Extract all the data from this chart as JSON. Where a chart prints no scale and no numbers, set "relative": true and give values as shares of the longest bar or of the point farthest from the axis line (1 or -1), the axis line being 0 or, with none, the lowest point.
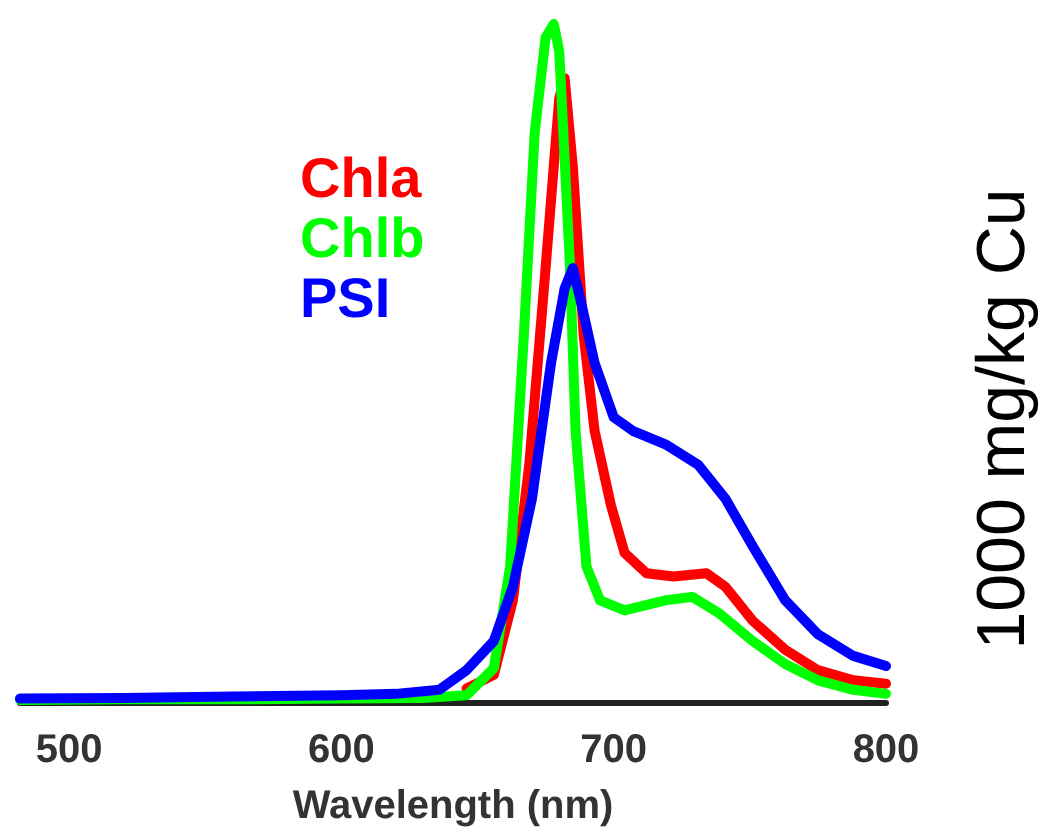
{
  "chart_data": {
    "type": "line",
    "xlabel": "Wavelength (nm)",
    "ylabel": "1000 mg/kg Cu",
    "xlim": [
      482,
      800
    ],
    "xticks": [
      500,
      600,
      700,
      800
    ],
    "relative": true,
    "legend": "top left",
    "grid": false,
    "marker": "none",
    "line_style": "solid",
    "series": [
      {
        "name": "Chla",
        "color": "#ff0000",
        "x": [
          646,
          656,
          663,
          669,
          675,
          680,
          682,
          685,
          689,
          693,
          699,
          704,
          712,
          722,
          734,
          741,
          751,
          763,
          775,
          788,
          800
        ],
        "values": [
          0.02,
          0.04,
          0.15,
          0.35,
          0.64,
          0.89,
          0.92,
          0.79,
          0.54,
          0.4,
          0.29,
          0.22,
          0.19,
          0.185,
          0.19,
          0.17,
          0.12,
          0.077,
          0.047,
          0.032,
          0.027
        ]
      },
      {
        "name": "Chlb",
        "color": "#00ff00",
        "x": [
          482,
          520,
          560,
          600,
          630,
          646,
          656,
          662,
          667,
          671,
          675,
          678,
          680,
          684,
          686,
          690,
          695,
          704,
          719,
          729,
          739,
          751,
          763,
          775,
          788,
          800
        ],
        "values": [
          0.003,
          0.004,
          0.004,
          0.005,
          0.006,
          0.01,
          0.05,
          0.2,
          0.54,
          0.84,
          0.98,
          1,
          0.96,
          0.64,
          0.4,
          0.2,
          0.15,
          0.135,
          0.15,
          0.155,
          0.13,
          0.09,
          0.056,
          0.032,
          0.018,
          0.012
        ]
      },
      {
        "name": "PSI",
        "color": "#0000ff",
        "x": [
          482,
          520,
          560,
          600,
          620,
          636,
          646,
          656,
          663,
          670,
          677,
          682,
          685,
          688,
          693,
          700,
          707,
          719,
          731,
          741,
          751,
          763,
          775,
          788,
          800
        ],
        "values": [
          0.005,
          0.006,
          0.008,
          0.01,
          0.012,
          0.018,
          0.047,
          0.09,
          0.17,
          0.3,
          0.5,
          0.61,
          0.64,
          0.59,
          0.5,
          0.42,
          0.4,
          0.38,
          0.35,
          0.3,
          0.23,
          0.15,
          0.1,
          0.068,
          0.053
        ]
      }
    ]
  }
}
